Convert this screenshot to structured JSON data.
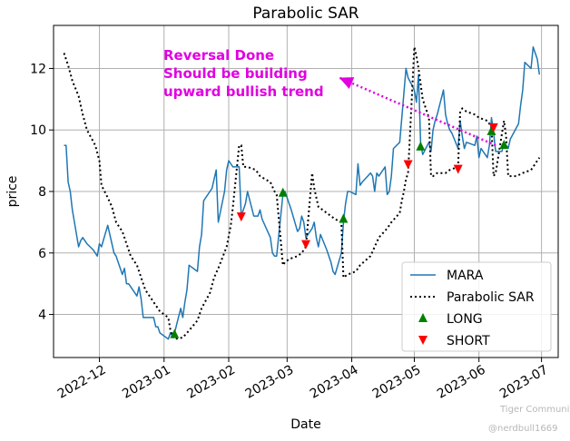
{
  "chart_data": {
    "type": "line",
    "title": "Parabolic SAR",
    "xlabel": "Date",
    "ylabel": "price",
    "x_ticks": [
      "2022-12",
      "2023-01",
      "2023-02",
      "2023-03",
      "2023-04",
      "2023-05",
      "2023-06",
      "2023-07"
    ],
    "y_ticks": [
      4,
      6,
      8,
      10,
      12
    ],
    "xlim": [
      "2022-11-09",
      "2023-07-09"
    ],
    "ylim": [
      2.6,
      13.4
    ],
    "grid": true,
    "legend_position": "lower-right",
    "series": [
      {
        "name": "MARA",
        "style": "solid",
        "color": "#1f77b4",
        "points": [
          [
            "2022-11-14",
            9.5
          ],
          [
            "2022-11-15",
            9.5
          ],
          [
            "2022-11-16",
            8.3
          ],
          [
            "2022-11-17",
            8.0
          ],
          [
            "2022-11-18",
            7.4
          ],
          [
            "2022-11-21",
            6.2
          ],
          [
            "2022-11-22",
            6.4
          ],
          [
            "2022-11-23",
            6.5
          ],
          [
            "2022-11-25",
            6.3
          ],
          [
            "2022-11-28",
            6.1
          ],
          [
            "2022-11-29",
            6.0
          ],
          [
            "2022-11-30",
            5.9
          ],
          [
            "2022-12-01",
            6.3
          ],
          [
            "2022-12-02",
            6.2
          ],
          [
            "2022-12-05",
            6.9
          ],
          [
            "2022-12-06",
            6.6
          ],
          [
            "2022-12-07",
            6.3
          ],
          [
            "2022-12-08",
            6.0
          ],
          [
            "2022-12-09",
            5.9
          ],
          [
            "2022-12-12",
            5.3
          ],
          [
            "2022-12-13",
            5.5
          ],
          [
            "2022-12-14",
            5.0
          ],
          [
            "2022-12-15",
            5.0
          ],
          [
            "2022-12-16",
            4.9
          ],
          [
            "2022-12-19",
            4.6
          ],
          [
            "2022-12-20",
            4.9
          ],
          [
            "2022-12-21",
            4.5
          ],
          [
            "2022-12-22",
            3.9
          ],
          [
            "2022-12-23",
            3.9
          ],
          [
            "2022-12-27",
            3.9
          ],
          [
            "2022-12-28",
            3.6
          ],
          [
            "2022-12-29",
            3.6
          ],
          [
            "2022-12-30",
            3.4
          ],
          [
            "2023-01-03",
            3.2
          ],
          [
            "2023-01-04",
            3.4
          ],
          [
            "2023-01-05",
            3.3
          ],
          [
            "2023-01-06",
            3.4
          ],
          [
            "2023-01-09",
            4.2
          ],
          [
            "2023-01-10",
            3.9
          ],
          [
            "2023-01-11",
            4.4
          ],
          [
            "2023-01-12",
            4.8
          ],
          [
            "2023-01-13",
            5.6
          ],
          [
            "2023-01-17",
            5.4
          ],
          [
            "2023-01-18",
            6.2
          ],
          [
            "2023-01-19",
            6.6
          ],
          [
            "2023-01-20",
            7.7
          ],
          [
            "2023-01-23",
            8.0
          ],
          [
            "2023-01-24",
            8.1
          ],
          [
            "2023-01-25",
            8.4
          ],
          [
            "2023-01-26",
            8.7
          ],
          [
            "2023-01-27",
            7.0
          ],
          [
            "2023-01-30",
            8.0
          ],
          [
            "2023-01-31",
            8.7
          ],
          [
            "2023-02-01",
            9.0
          ],
          [
            "2023-02-02",
            8.9
          ],
          [
            "2023-02-03",
            8.8
          ],
          [
            "2023-02-06",
            8.8
          ],
          [
            "2023-02-07",
            7.2
          ],
          [
            "2023-02-08",
            7.4
          ],
          [
            "2023-02-09",
            7.6
          ],
          [
            "2023-02-10",
            8.0
          ],
          [
            "2023-02-13",
            7.2
          ],
          [
            "2023-02-14",
            7.2
          ],
          [
            "2023-02-15",
            7.2
          ],
          [
            "2023-02-16",
            7.4
          ],
          [
            "2023-02-17",
            7.1
          ],
          [
            "2023-02-21",
            6.5
          ],
          [
            "2023-02-22",
            6.0
          ],
          [
            "2023-02-23",
            5.9
          ],
          [
            "2023-02-24",
            5.9
          ],
          [
            "2023-02-27",
            7.9
          ],
          [
            "2023-02-28",
            8.0
          ],
          [
            "2023-03-01",
            7.8
          ],
          [
            "2023-03-02",
            7.6
          ],
          [
            "2023-03-03",
            7.4
          ],
          [
            "2023-03-06",
            6.7
          ],
          [
            "2023-03-07",
            6.8
          ],
          [
            "2023-03-08",
            7.2
          ],
          [
            "2023-03-09",
            7.0
          ],
          [
            "2023-03-10",
            6.5
          ],
          [
            "2023-03-13",
            6.8
          ],
          [
            "2023-03-14",
            7.0
          ],
          [
            "2023-03-15",
            6.5
          ],
          [
            "2023-03-16",
            6.2
          ],
          [
            "2023-03-17",
            6.6
          ],
          [
            "2023-03-20",
            6.1
          ],
          [
            "2023-03-21",
            5.9
          ],
          [
            "2023-03-22",
            5.7
          ],
          [
            "2023-03-23",
            5.4
          ],
          [
            "2023-03-24",
            5.3
          ],
          [
            "2023-03-27",
            6.0
          ],
          [
            "2023-03-28",
            7.0
          ],
          [
            "2023-03-29",
            7.6
          ],
          [
            "2023-03-30",
            8.0
          ],
          [
            "2023-03-31",
            8.0
          ],
          [
            "2023-04-03",
            7.9
          ],
          [
            "2023-04-04",
            8.9
          ],
          [
            "2023-04-05",
            8.2
          ],
          [
            "2023-04-06",
            8.3
          ],
          [
            "2023-04-10",
            8.6
          ],
          [
            "2023-04-11",
            8.5
          ],
          [
            "2023-04-12",
            8.0
          ],
          [
            "2023-04-13",
            8.6
          ],
          [
            "2023-04-14",
            8.5
          ],
          [
            "2023-04-17",
            8.8
          ],
          [
            "2023-04-18",
            7.9
          ],
          [
            "2023-04-19",
            8.0
          ],
          [
            "2023-04-20",
            8.5
          ],
          [
            "2023-04-21",
            9.4
          ],
          [
            "2023-04-24",
            9.6
          ],
          [
            "2023-04-25",
            10.4
          ],
          [
            "2023-04-26",
            11.2
          ],
          [
            "2023-04-27",
            12.0
          ],
          [
            "2023-04-28",
            11.7
          ],
          [
            "2023-05-01",
            11.3
          ],
          [
            "2023-05-02",
            10.9
          ],
          [
            "2023-05-03",
            11.8
          ],
          [
            "2023-05-04",
            9.6
          ],
          [
            "2023-05-05",
            9.2
          ],
          [
            "2023-05-08",
            9.6
          ],
          [
            "2023-05-09",
            9.3
          ],
          [
            "2023-05-10",
            10.0
          ],
          [
            "2023-05-11",
            10.3
          ],
          [
            "2023-05-12",
            10.5
          ],
          [
            "2023-05-15",
            11.3
          ],
          [
            "2023-05-16",
            10.5
          ],
          [
            "2023-05-17",
            10.2
          ],
          [
            "2023-05-18",
            10.0
          ],
          [
            "2023-05-19",
            9.9
          ],
          [
            "2023-05-22",
            9.4
          ],
          [
            "2023-05-23",
            10.3
          ],
          [
            "2023-05-24",
            9.8
          ],
          [
            "2023-05-25",
            9.4
          ],
          [
            "2023-05-26",
            9.6
          ],
          [
            "2023-05-30",
            9.5
          ],
          [
            "2023-05-31",
            9.8
          ],
          [
            "2023-06-01",
            9.1
          ],
          [
            "2023-06-02",
            9.4
          ],
          [
            "2023-06-05",
            9.1
          ],
          [
            "2023-06-06",
            9.5
          ],
          [
            "2023-06-07",
            10.4
          ],
          [
            "2023-06-08",
            9.9
          ],
          [
            "2023-06-09",
            9.3
          ],
          [
            "2023-06-12",
            9.3
          ],
          [
            "2023-06-13",
            9.6
          ],
          [
            "2023-06-14",
            9.5
          ],
          [
            "2023-06-15",
            9.4
          ],
          [
            "2023-06-16",
            9.7
          ],
          [
            "2023-06-20",
            10.2
          ],
          [
            "2023-06-21",
            10.8
          ],
          [
            "2023-06-22",
            11.3
          ],
          [
            "2023-06-23",
            12.2
          ],
          [
            "2023-06-26",
            12.0
          ],
          [
            "2023-06-27",
            12.7
          ],
          [
            "2023-06-28",
            12.5
          ],
          [
            "2023-06-29",
            12.3
          ],
          [
            "2023-06-30",
            11.8
          ]
        ]
      },
      {
        "name": "Parabolic SAR",
        "style": "dotted",
        "color": "#000000",
        "points": [
          [
            "2022-11-14",
            12.5
          ],
          [
            "2022-11-16",
            12.1
          ],
          [
            "2022-11-18",
            11.6
          ],
          [
            "2022-11-21",
            11.1
          ],
          [
            "2022-11-23",
            10.5
          ],
          [
            "2022-11-25",
            10.0
          ],
          [
            "2022-11-29",
            9.5
          ],
          [
            "2022-12-01",
            9.0
          ],
          [
            "2022-12-02",
            8.2
          ],
          [
            "2022-12-05",
            7.8
          ],
          [
            "2022-12-07",
            7.5
          ],
          [
            "2022-12-09",
            7.0
          ],
          [
            "2022-12-12",
            6.7
          ],
          [
            "2022-12-14",
            6.3
          ],
          [
            "2022-12-16",
            5.9
          ],
          [
            "2022-12-19",
            5.6
          ],
          [
            "2022-12-21",
            5.2
          ],
          [
            "2022-12-23",
            4.8
          ],
          [
            "2022-12-27",
            4.4
          ],
          [
            "2022-12-29",
            4.2
          ],
          [
            "2022-12-30",
            4.1
          ],
          [
            "2023-01-03",
            3.9
          ],
          [
            "2023-01-04",
            3.5
          ],
          [
            "2023-01-05",
            3.3
          ],
          [
            "2023-01-06",
            3.2
          ],
          [
            "2023-01-10",
            3.25
          ],
          [
            "2023-01-12",
            3.4
          ],
          [
            "2023-01-17",
            3.8
          ],
          [
            "2023-01-19",
            4.2
          ],
          [
            "2023-01-23",
            4.7
          ],
          [
            "2023-01-25",
            5.2
          ],
          [
            "2023-01-27",
            5.5
          ],
          [
            "2023-01-31",
            6.2
          ],
          [
            "2023-02-02",
            6.9
          ],
          [
            "2023-02-03",
            7.5
          ],
          [
            "2023-02-06",
            9.5
          ],
          [
            "2023-02-07",
            9.5
          ],
          [
            "2023-02-08",
            8.8
          ],
          [
            "2023-02-10",
            8.8
          ],
          [
            "2023-02-14",
            8.7
          ],
          [
            "2023-02-16",
            8.5
          ],
          [
            "2023-02-21",
            8.3
          ],
          [
            "2023-02-23",
            8.0
          ],
          [
            "2023-02-24",
            7.9
          ],
          [
            "2023-02-27",
            5.6
          ],
          [
            "2023-02-28",
            5.7
          ],
          [
            "2023-03-02",
            5.8
          ],
          [
            "2023-03-06",
            5.9
          ],
          [
            "2023-03-08",
            6.0
          ],
          [
            "2023-03-09",
            6.1
          ],
          [
            "2023-03-10",
            6.2
          ],
          [
            "2023-03-13",
            8.6
          ],
          [
            "2023-03-14",
            8.1
          ],
          [
            "2023-03-16",
            7.5
          ],
          [
            "2023-03-20",
            7.3
          ],
          [
            "2023-03-22",
            7.2
          ],
          [
            "2023-03-24",
            7.1
          ],
          [
            "2023-03-27",
            7.0
          ],
          [
            "2023-03-28",
            5.2
          ],
          [
            "2023-03-30",
            5.3
          ],
          [
            "2023-04-03",
            5.4
          ],
          [
            "2023-04-05",
            5.6
          ],
          [
            "2023-04-10",
            5.9
          ],
          [
            "2023-04-12",
            6.2
          ],
          [
            "2023-04-14",
            6.5
          ],
          [
            "2023-04-18",
            6.8
          ],
          [
            "2023-04-20",
            7.0
          ],
          [
            "2023-04-24",
            7.3
          ],
          [
            "2023-04-25",
            7.7
          ],
          [
            "2023-04-26",
            8.0
          ],
          [
            "2023-04-27",
            8.4
          ],
          [
            "2023-04-28",
            8.6
          ],
          [
            "2023-05-01",
            12.7
          ],
          [
            "2023-05-02",
            12.4
          ],
          [
            "2023-05-03",
            12.0
          ],
          [
            "2023-05-04",
            11.5
          ],
          [
            "2023-05-05",
            11.0
          ],
          [
            "2023-05-08",
            10.4
          ],
          [
            "2023-05-09",
            8.5
          ],
          [
            "2023-05-10",
            8.5
          ],
          [
            "2023-05-12",
            8.6
          ],
          [
            "2023-05-16",
            8.6
          ],
          [
            "2023-05-18",
            8.7
          ],
          [
            "2023-05-22",
            8.8
          ],
          [
            "2023-05-23",
            10.6
          ],
          [
            "2023-05-24",
            10.7
          ],
          [
            "2023-05-26",
            10.6
          ],
          [
            "2023-05-30",
            10.5
          ],
          [
            "2023-06-01",
            10.4
          ],
          [
            "2023-06-05",
            10.3
          ],
          [
            "2023-06-06",
            10.2
          ],
          [
            "2023-06-07",
            10.1
          ],
          [
            "2023-06-08",
            8.5
          ],
          [
            "2023-06-09",
            8.6
          ],
          [
            "2023-06-13",
            10.3
          ],
          [
            "2023-06-14",
            9.8
          ],
          [
            "2023-06-15",
            8.5
          ],
          [
            "2023-06-19",
            8.5
          ],
          [
            "2023-06-22",
            8.6
          ],
          [
            "2023-06-26",
            8.7
          ],
          [
            "2023-06-28",
            8.9
          ],
          [
            "2023-06-30",
            9.1
          ]
        ]
      }
    ],
    "markers": {
      "long": {
        "name": "LONG",
        "color": "#008000",
        "shape": "triangle-up",
        "points": [
          [
            "2023-01-06",
            3.35
          ],
          [
            "2023-02-27",
            7.95
          ],
          [
            "2023-03-28",
            7.1
          ],
          [
            "2023-05-04",
            9.45
          ],
          [
            "2023-06-07",
            9.95
          ],
          [
            "2023-06-13",
            9.5
          ]
        ]
      },
      "short": {
        "name": "SHORT",
        "color": "#ff0000",
        "shape": "triangle-down",
        "points": [
          [
            "2023-02-07",
            7.2
          ],
          [
            "2023-03-10",
            6.3
          ],
          [
            "2023-04-28",
            8.9
          ],
          [
            "2023-05-22",
            8.75
          ],
          [
            "2023-06-08",
            10.1
          ]
        ]
      }
    },
    "annotation": {
      "lines": [
        "Reversal Done",
        "Should be building",
        "upward bullish trend"
      ],
      "color": "#e000e0",
      "arrow_from": [
        "2023-06-09",
        9.5
      ],
      "arrow_to": [
        "2023-03-26",
        11.7
      ]
    },
    "watermark": [
      "Tiger Community",
      "@nerdbull1669"
    ]
  }
}
